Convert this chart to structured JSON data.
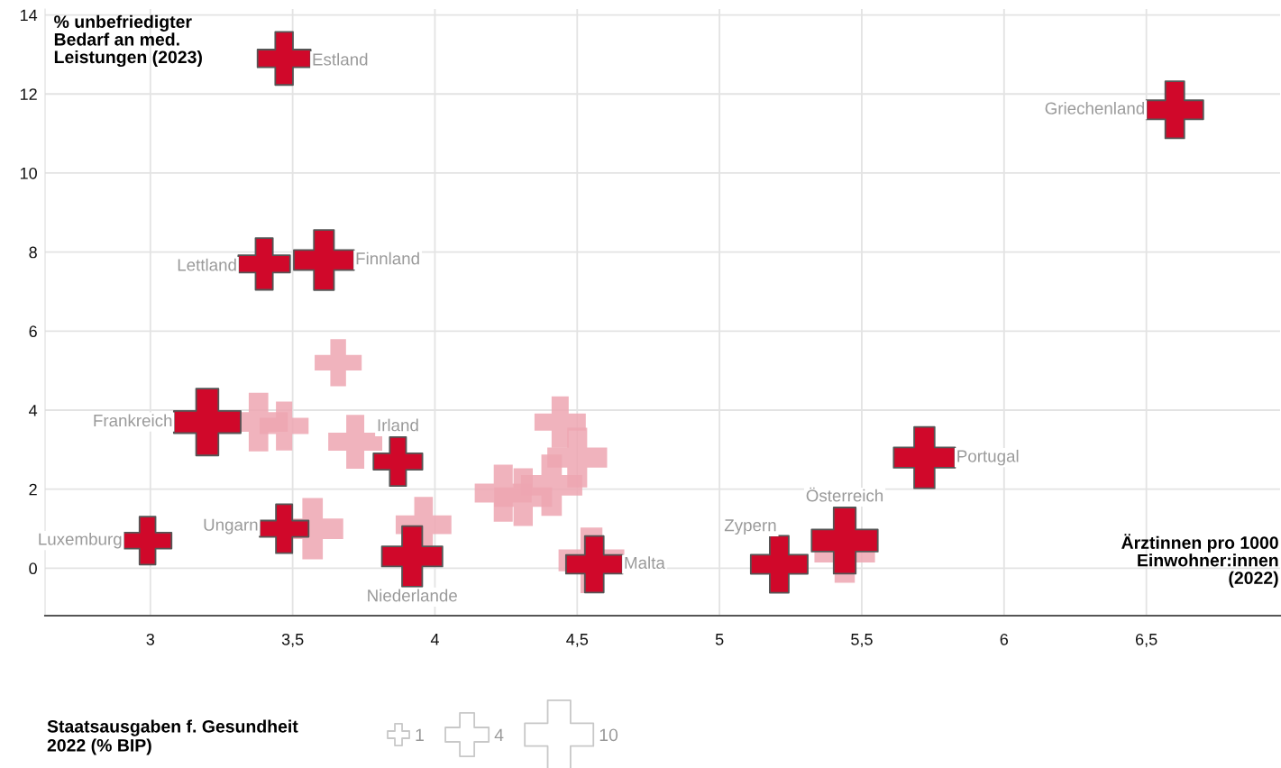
{
  "chart_data": {
    "type": "bubble",
    "ylabel": "% unbefriedigter\nBedarf an med.\nLeistungen (2023)",
    "xlabel": "Ärztinnen pro 1000\nEinwohner:innen\n(2022)",
    "legend_title": "Staatsausgaben f. Gesundheit\n2022 (% BIP)",
    "size_legend": [
      1,
      4,
      10
    ],
    "marker": "cross",
    "grid": true,
    "xlim": [
      2.63,
      6.97
    ],
    "ylim": [
      -1.2,
      14.15
    ],
    "xticks": [
      3,
      {
        "value": 3.5,
        "label": "3,5"
      },
      4,
      {
        "value": 4.5,
        "label": "4,5"
      },
      5,
      {
        "value": 5.5,
        "label": "5,5"
      },
      6,
      {
        "value": 6.5,
        "label": "6,5"
      }
    ],
    "yticks": [
      0,
      2,
      4,
      6,
      8,
      10,
      12,
      14
    ],
    "series": [
      {
        "color": "#eda6b1",
        "x": [
          3.66,
          3.38,
          3.47,
          3.72,
          3.57,
          3.96,
          4.44,
          4.5,
          4.41,
          4.24,
          4.31,
          4.55,
          5.44
        ],
        "values": [
          5.2,
          3.7,
          3.6,
          3.2,
          1.0,
          1.1,
          3.7,
          2.8,
          2.1,
          1.9,
          1.8,
          0.2,
          0.4
        ],
        "sizes": [
          4.7,
          7.3,
          5.1,
          6.2,
          8,
          6.6,
          5.6,
          7.6,
          8,
          6.9,
          7.1,
          9.2,
          7.8
        ]
      },
      {
        "color": "#d0082a",
        "x": [
          3.47,
          6.6,
          3.4,
          3.61,
          3.2,
          3.87,
          5.72,
          2.99,
          3.47,
          3.92,
          4.56,
          5.21,
          5.44
        ],
        "values": [
          12.9,
          11.6,
          7.7,
          7.8,
          3.7,
          2.7,
          2.8,
          0.7,
          1.0,
          0.3,
          0.1,
          0.1,
          0.7
        ],
        "sizes": [
          6.0,
          6.9,
          5.7,
          7.7,
          9.5,
          5.1,
          8,
          4.9,
          5.1,
          7.8,
          6.8,
          6.9,
          9.3
        ]
      }
    ],
    "annotations": [
      {
        "text": "Estland",
        "x": 3.47,
        "y": 12.9
      },
      {
        "text": "Griechenland",
        "x": 6.6,
        "y": 11.6
      },
      {
        "text": "Lettland",
        "x": 3.4,
        "y": 7.7
      },
      {
        "text": "Finnland",
        "x": 3.61,
        "y": 7.8
      },
      {
        "text": "Frankreich",
        "x": 3.2,
        "y": 3.7
      },
      {
        "text": "Irland",
        "x": 3.87,
        "y": 2.7
      },
      {
        "text": "Portugal",
        "x": 5.72,
        "y": 2.8
      },
      {
        "text": "Luxemburg",
        "x": 2.99,
        "y": 0.7
      },
      {
        "text": "Ungarn",
        "x": 3.47,
        "y": 1.0
      },
      {
        "text": "Niederlande",
        "x": 3.92,
        "y": 0.3
      },
      {
        "text": "Malta",
        "x": 4.56,
        "y": 0.1
      },
      {
        "text": "Zypern",
        "x": 5.21,
        "y": 0.1
      },
      {
        "text": "Österreich",
        "x": 5.44,
        "y": 0.7
      }
    ]
  }
}
